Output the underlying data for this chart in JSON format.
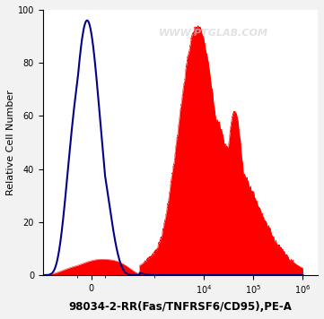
{
  "title": "98034-2-RR(Fas/TNFRSF6/CD95),PE-A",
  "ylabel": "Relative Cell Number",
  "ylim": [
    0,
    100
  ],
  "bg_color": "#f2f2f2",
  "plot_bg": "#ffffff",
  "watermark": "WWW.PTGLAB.COM",
  "red_fill_color": "#ff0000",
  "blue_line_color": "#00008b",
  "title_fontsize": 8.5,
  "axis_fontsize": 8,
  "yticks": [
    0,
    20,
    40,
    60,
    80,
    100
  ]
}
